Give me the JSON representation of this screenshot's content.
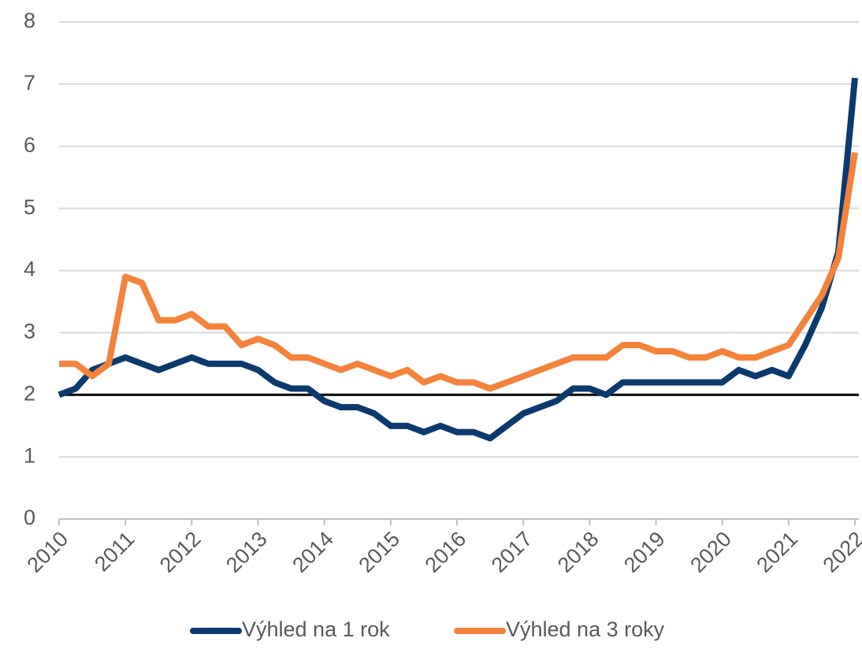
{
  "chart_data": {
    "type": "line",
    "x": [
      2010,
      2010.25,
      2010.5,
      2010.75,
      2011,
      2011.25,
      2011.5,
      2011.75,
      2012,
      2012.25,
      2012.5,
      2012.75,
      2013,
      2013.25,
      2013.5,
      2013.75,
      2014,
      2014.25,
      2014.5,
      2014.75,
      2015,
      2015.25,
      2015.5,
      2015.75,
      2016,
      2016.25,
      2016.5,
      2016.75,
      2017,
      2017.25,
      2017.5,
      2017.75,
      2018,
      2018.25,
      2018.5,
      2018.75,
      2019,
      2019.25,
      2019.5,
      2019.75,
      2020,
      2020.25,
      2020.5,
      2020.75,
      2021,
      2021.25,
      2021.5,
      2021.75,
      2022
    ],
    "series": [
      {
        "name": "Výhled na 1 rok",
        "color": "#0b3a6e",
        "values": [
          2.0,
          2.1,
          2.4,
          2.5,
          2.6,
          2.5,
          2.4,
          2.5,
          2.6,
          2.5,
          2.5,
          2.5,
          2.4,
          2.2,
          2.1,
          2.1,
          1.9,
          1.8,
          1.8,
          1.7,
          1.5,
          1.5,
          1.4,
          1.5,
          1.4,
          1.4,
          1.3,
          1.5,
          1.7,
          1.8,
          1.9,
          2.1,
          2.1,
          2.0,
          2.2,
          2.2,
          2.2,
          2.2,
          2.2,
          2.2,
          2.2,
          2.4,
          2.3,
          2.4,
          2.3,
          2.8,
          3.4,
          4.3,
          7.1
        ]
      },
      {
        "name": "Výhled na 3 roky",
        "color": "#f4823a",
        "values": [
          2.5,
          2.5,
          2.3,
          2.5,
          3.9,
          3.8,
          3.2,
          3.2,
          3.3,
          3.1,
          3.1,
          2.8,
          2.9,
          2.8,
          2.6,
          2.6,
          2.5,
          2.4,
          2.5,
          2.4,
          2.3,
          2.4,
          2.2,
          2.3,
          2.2,
          2.2,
          2.1,
          2.2,
          2.3,
          2.4,
          2.5,
          2.6,
          2.6,
          2.6,
          2.8,
          2.8,
          2.7,
          2.7,
          2.6,
          2.6,
          2.7,
          2.6,
          2.6,
          2.7,
          2.8,
          3.2,
          3.6,
          4.2,
          5.9
        ]
      }
    ],
    "xlim": [
      2010,
      2022
    ],
    "xticks": [
      2010,
      2011,
      2012,
      2013,
      2014,
      2015,
      2016,
      2017,
      2018,
      2019,
      2020,
      2021,
      2022
    ],
    "ylim": [
      0,
      8
    ],
    "yticks": [
      0,
      1,
      2,
      3,
      4,
      5,
      6,
      7,
      8
    ],
    "grid": true,
    "reference_line": {
      "value": 2,
      "color": "#000000"
    },
    "legend": "bottom"
  }
}
